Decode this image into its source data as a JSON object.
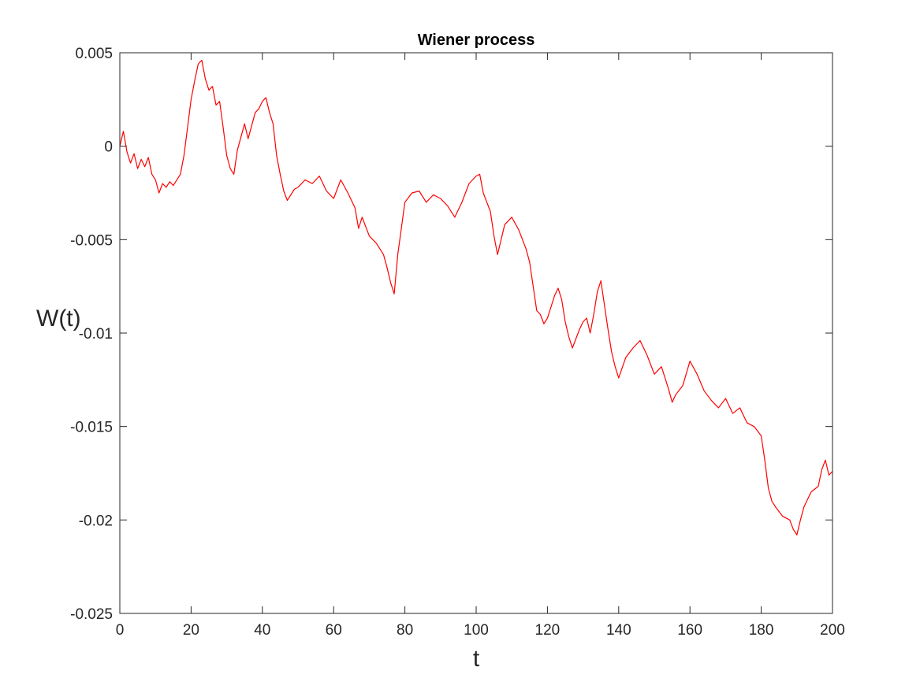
{
  "chart_data": {
    "type": "line",
    "title": "Wiener process",
    "xlabel": "t",
    "ylabel": "W(t)",
    "xlim": [
      0,
      200
    ],
    "ylim": [
      -0.025,
      0.005
    ],
    "x_ticks": [
      0,
      20,
      40,
      60,
      80,
      100,
      120,
      140,
      160,
      180,
      200
    ],
    "x_tick_labels": [
      "0",
      "20",
      "40",
      "60",
      "80",
      "100",
      "120",
      "140",
      "160",
      "180",
      "200"
    ],
    "y_ticks": [
      0.005,
      0,
      -0.005,
      -0.01,
      -0.015,
      -0.02,
      -0.025
    ],
    "y_tick_labels": [
      "0.005",
      "0",
      "-0.005",
      "-0.01",
      "-0.015",
      "-0.02",
      "-0.025"
    ],
    "grid": false,
    "box": true,
    "line_color": "#ff0000",
    "axis_color": "#262626",
    "series": [
      {
        "x": [
          0,
          1,
          2,
          3,
          4,
          5,
          6,
          7,
          8,
          9,
          10,
          11,
          12,
          13,
          14,
          15,
          16,
          17,
          18,
          19,
          20,
          21,
          22,
          23,
          24,
          25,
          26,
          27,
          28,
          29,
          30,
          31,
          32,
          33,
          34,
          35,
          36,
          37,
          38,
          39,
          40,
          41,
          42,
          43,
          44,
          45,
          46,
          47,
          48,
          49,
          50,
          52,
          54,
          56,
          58,
          60,
          62,
          64,
          66,
          67,
          68,
          70,
          72,
          74,
          75,
          76,
          77,
          78,
          80,
          82,
          84,
          86,
          88,
          90,
          92,
          94,
          96,
          98,
          100,
          101,
          102,
          104,
          105,
          106,
          108,
          110,
          112,
          114,
          115,
          116,
          117,
          118,
          119,
          120,
          121,
          122,
          123,
          124,
          125,
          126,
          127,
          128,
          129,
          130,
          131,
          132,
          133,
          134,
          135,
          136,
          137,
          138,
          139,
          140,
          142,
          144,
          146,
          148,
          150,
          152,
          154,
          155,
          156,
          158,
          160,
          162,
          164,
          166,
          168,
          170,
          172,
          174,
          176,
          178,
          180,
          181,
          182,
          183,
          184,
          186,
          188,
          189,
          190,
          191,
          192,
          194,
          196,
          197,
          198,
          199,
          200
        ],
        "y": [
          0,
          0.0008,
          -0.0003,
          -0.0009,
          -0.0004,
          -0.0012,
          -0.0007,
          -0.0011,
          -0.0006,
          -0.0015,
          -0.0018,
          -0.0025,
          -0.002,
          -0.0022,
          -0.0019,
          -0.0021,
          -0.0018,
          -0.0015,
          -0.0005,
          0.001,
          0.0025,
          0.0035,
          0.0044,
          0.0046,
          0.0036,
          0.003,
          0.0032,
          0.0022,
          0.0024,
          0.001,
          -0.0005,
          -0.0012,
          -0.0015,
          -0.0002,
          0.0005,
          0.0012,
          0.0004,
          0.0011,
          0.0018,
          0.002,
          0.0024,
          0.0026,
          0.0018,
          0.0012,
          -0.0005,
          -0.0015,
          -0.0024,
          -0.0029,
          -0.0026,
          -0.0023,
          -0.0022,
          -0.0018,
          -0.002,
          -0.0016,
          -0.0024,
          -0.0028,
          -0.0018,
          -0.0025,
          -0.0033,
          -0.0044,
          -0.0038,
          -0.0048,
          -0.0052,
          -0.0058,
          -0.0065,
          -0.0073,
          -0.0079,
          -0.0058,
          -0.003,
          -0.0025,
          -0.0024,
          -0.003,
          -0.0026,
          -0.0028,
          -0.0032,
          -0.0038,
          -0.003,
          -0.002,
          -0.0016,
          -0.0015,
          -0.0025,
          -0.0035,
          -0.0048,
          -0.0058,
          -0.0042,
          -0.0038,
          -0.0045,
          -0.0055,
          -0.0062,
          -0.0075,
          -0.0088,
          -0.009,
          -0.0095,
          -0.0092,
          -0.0086,
          -0.008,
          -0.0076,
          -0.0082,
          -0.0094,
          -0.0102,
          -0.0108,
          -0.0103,
          -0.0098,
          -0.0094,
          -0.0092,
          -0.01,
          -0.009,
          -0.0078,
          -0.0072,
          -0.0085,
          -0.0098,
          -0.011,
          -0.0118,
          -0.0124,
          -0.0113,
          -0.0108,
          -0.0104,
          -0.0112,
          -0.0122,
          -0.0118,
          -0.013,
          -0.0137,
          -0.0133,
          -0.0128,
          -0.0115,
          -0.0122,
          -0.0131,
          -0.0136,
          -0.014,
          -0.0135,
          -0.0143,
          -0.014,
          -0.0148,
          -0.015,
          -0.0155,
          -0.0168,
          -0.0183,
          -0.019,
          -0.0193,
          -0.0198,
          -0.02,
          -0.0205,
          -0.0208,
          -0.02,
          -0.0193,
          -0.0185,
          -0.0182,
          -0.0173,
          -0.0168,
          -0.0176,
          -0.0174
        ]
      }
    ]
  }
}
